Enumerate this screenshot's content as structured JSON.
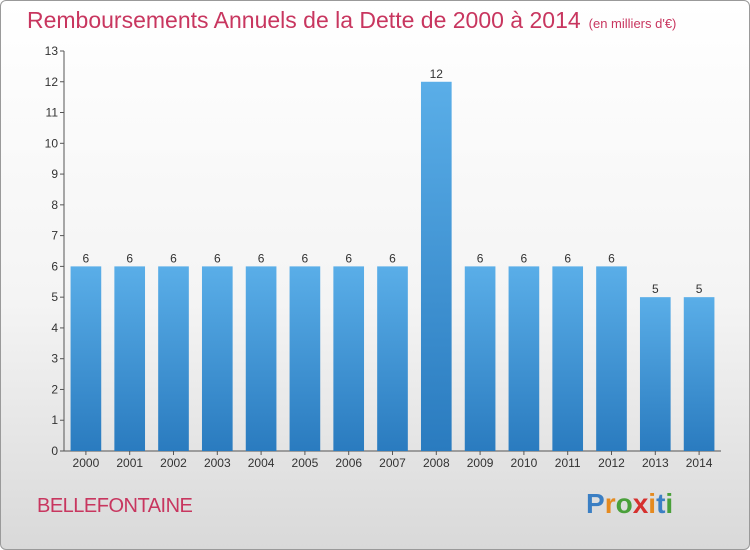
{
  "header": {
    "title": "Remboursements Annuels de la Dette de 2000 à 2014",
    "unit": "(en milliers d'€)"
  },
  "commune": "BELLEFONTAINE",
  "logo": {
    "text": "Proxiti",
    "letter_colors": [
      "#3b7fc4",
      "#e58a1f",
      "#4aa03a",
      "#d6312f",
      "#e58a1f",
      "#3b7fc4",
      "#4aa03a"
    ]
  },
  "chart_data": {
    "type": "bar",
    "categories": [
      "2000",
      "2001",
      "2002",
      "2003",
      "2004",
      "2005",
      "2006",
      "2007",
      "2008",
      "2009",
      "2010",
      "2011",
      "2012",
      "2013",
      "2014"
    ],
    "values": [
      6,
      6,
      6,
      6,
      6,
      6,
      6,
      6,
      12,
      6,
      6,
      6,
      6,
      5,
      5
    ],
    "data_labels": [
      "6",
      "6",
      "6",
      "6",
      "6",
      "6",
      "6",
      "6",
      "12",
      "6",
      "6",
      "6",
      "6",
      "5",
      "5"
    ],
    "ylim": [
      0,
      13
    ],
    "yticks": [
      0,
      1,
      2,
      3,
      4,
      5,
      6,
      7,
      8,
      9,
      10,
      11,
      12,
      13
    ],
    "grid": false,
    "bar_color_top": "#5aaee8",
    "bar_color_bottom": "#2a7bbf"
  }
}
